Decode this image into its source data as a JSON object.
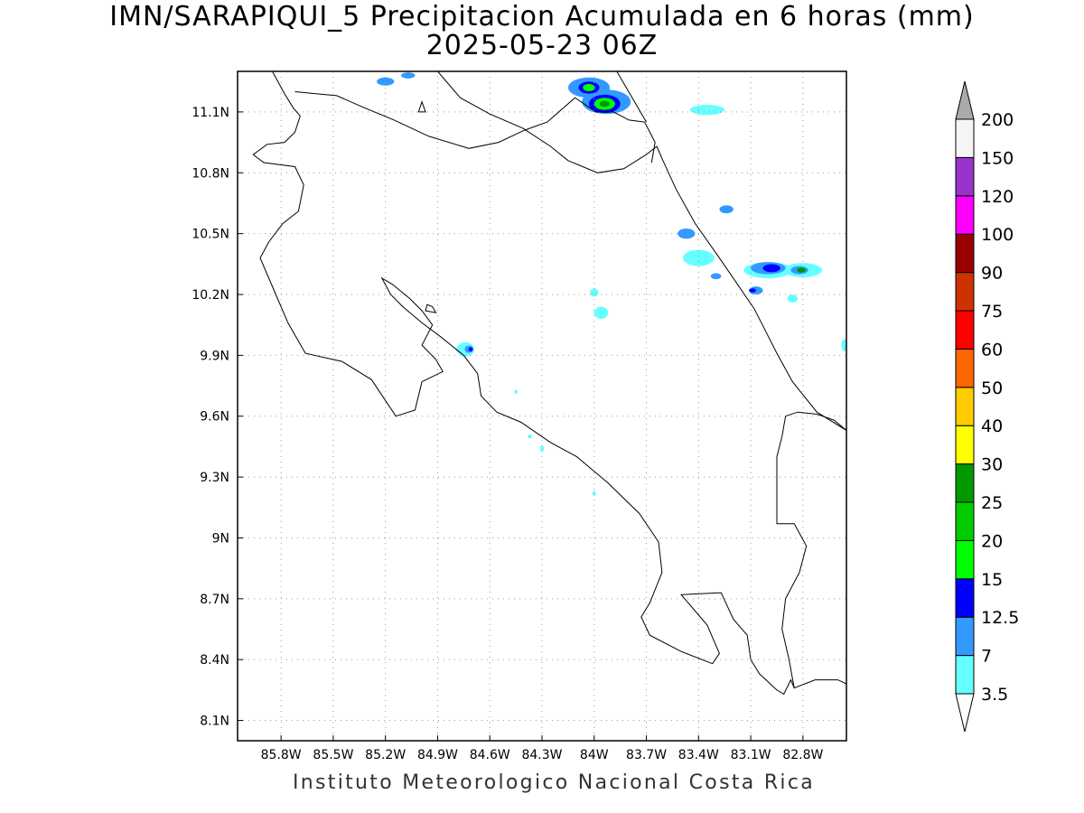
{
  "title": {
    "line1": "IMN/SARAPIQUI_5 Precipitacion Acumulada en 6 horas (mm)",
    "line2": "2025-05-23 06Z"
  },
  "footer": "Instituto Meteorologico Nacional Costa Rica",
  "map": {
    "extent": {
      "lon_min": -86.05,
      "lon_max": -82.55,
      "lat_min": 8.0,
      "lat_max": 11.3
    },
    "lat_ticks": [
      {
        "value": 11.1,
        "label": "11.1N"
      },
      {
        "value": 10.8,
        "label": "10.8N"
      },
      {
        "value": 10.5,
        "label": "10.5N"
      },
      {
        "value": 10.2,
        "label": "10.2N"
      },
      {
        "value": 9.9,
        "label": "9.9N"
      },
      {
        "value": 9.6,
        "label": "9.6N"
      },
      {
        "value": 9.3,
        "label": "9.3N"
      },
      {
        "value": 9.0,
        "label": "9N"
      },
      {
        "value": 8.7,
        "label": "8.7N"
      },
      {
        "value": 8.4,
        "label": "8.4N"
      },
      {
        "value": 8.1,
        "label": "8.1N"
      }
    ],
    "lon_ticks": [
      {
        "value": -85.8,
        "label": "85.8W"
      },
      {
        "value": -85.5,
        "label": "85.5W"
      },
      {
        "value": -85.2,
        "label": "85.2W"
      },
      {
        "value": -84.9,
        "label": "84.9W"
      },
      {
        "value": -84.6,
        "label": "84.6W"
      },
      {
        "value": -84.3,
        "label": "84.3W"
      },
      {
        "value": -84.0,
        "label": "84W"
      },
      {
        "value": -83.7,
        "label": "83.7W"
      },
      {
        "value": -83.4,
        "label": "83.4W"
      },
      {
        "value": -83.1,
        "label": "83.1W"
      },
      {
        "value": -82.8,
        "label": "82.8W"
      }
    ],
    "gridlines": true,
    "coastlines": [
      [
        [
          -85.85,
          11.3
        ],
        [
          -85.78,
          11.19
        ],
        [
          -85.73,
          11.12
        ],
        [
          -85.69,
          11.08
        ],
        [
          -85.72,
          11.0
        ],
        [
          -85.78,
          10.95
        ],
        [
          -85.88,
          10.94
        ],
        [
          -85.96,
          10.89
        ],
        [
          -85.9,
          10.85
        ],
        [
          -85.72,
          10.83
        ],
        [
          -85.67,
          10.74
        ],
        [
          -85.7,
          10.61
        ],
        [
          -85.79,
          10.55
        ],
        [
          -85.87,
          10.46
        ],
        [
          -85.92,
          10.38
        ],
        [
          -85.84,
          10.22
        ],
        [
          -85.76,
          10.06
        ],
        [
          -85.66,
          9.91
        ],
        [
          -85.45,
          9.87
        ],
        [
          -85.28,
          9.78
        ],
        [
          -85.14,
          9.6
        ],
        [
          -85.03,
          9.63
        ],
        [
          -84.99,
          9.77
        ],
        [
          -84.87,
          9.82
        ],
        [
          -84.91,
          9.88
        ],
        [
          -84.99,
          9.95
        ],
        [
          -84.93,
          10.05
        ],
        [
          -84.99,
          10.12
        ],
        [
          -85.06,
          10.18
        ],
        [
          -85.16,
          10.25
        ],
        [
          -85.22,
          10.28
        ],
        [
          -85.17,
          10.2
        ],
        [
          -85.1,
          10.14
        ],
        [
          -84.99,
          10.06
        ],
        [
          -84.88,
          9.99
        ],
        [
          -84.75,
          9.9
        ],
        [
          -84.67,
          9.81
        ],
        [
          -84.65,
          9.7
        ],
        [
          -84.56,
          9.62
        ],
        [
          -84.42,
          9.57
        ],
        [
          -84.25,
          9.47
        ],
        [
          -84.1,
          9.4
        ],
        [
          -83.92,
          9.27
        ],
        [
          -83.74,
          9.12
        ],
        [
          -83.63,
          8.98
        ],
        [
          -83.61,
          8.83
        ],
        [
          -83.68,
          8.68
        ],
        [
          -83.73,
          8.61
        ],
        [
          -83.68,
          8.52
        ],
        [
          -83.5,
          8.44
        ],
        [
          -83.32,
          8.38
        ],
        [
          -83.28,
          8.43
        ],
        [
          -83.35,
          8.57
        ],
        [
          -83.5,
          8.72
        ],
        [
          -83.27,
          8.73
        ],
        [
          -83.2,
          8.6
        ],
        [
          -83.12,
          8.52
        ],
        [
          -83.1,
          8.4
        ],
        [
          -83.05,
          8.33
        ],
        [
          -82.95,
          8.25
        ],
        [
          -82.91,
          8.23
        ],
        [
          -82.87,
          8.3
        ],
        [
          -82.85,
          8.26
        ],
        [
          -82.73,
          8.3
        ],
        [
          -82.6,
          8.3
        ],
        [
          -82.55,
          8.28
        ]
      ],
      [
        [
          -84.9,
          11.3
        ],
        [
          -84.84,
          11.24
        ],
        [
          -84.77,
          11.17
        ],
        [
          -84.6,
          11.09
        ],
        [
          -84.41,
          11.02
        ],
        [
          -84.25,
          10.93
        ],
        [
          -84.15,
          10.86
        ],
        [
          -83.98,
          10.8
        ],
        [
          -83.83,
          10.82
        ],
        [
          -83.7,
          10.89
        ],
        [
          -83.64,
          10.93
        ],
        [
          -83.61,
          10.87
        ],
        [
          -83.53,
          10.72
        ],
        [
          -83.42,
          10.55
        ],
        [
          -83.28,
          10.38
        ],
        [
          -83.08,
          10.13
        ],
        [
          -82.95,
          9.91
        ],
        [
          -82.86,
          9.77
        ],
        [
          -82.72,
          9.62
        ],
        [
          -82.55,
          9.53
        ]
      ],
      [
        [
          -83.71,
          11.05
        ],
        [
          -83.65,
          10.95
        ],
        [
          -83.67,
          10.85
        ]
      ]
    ],
    "borders": [
      [
        [
          -85.72,
          11.2
        ],
        [
          -85.6,
          11.19
        ],
        [
          -85.48,
          11.18
        ],
        [
          -85.32,
          11.12
        ],
        [
          -85.15,
          11.06
        ],
        [
          -84.95,
          10.98
        ],
        [
          -84.72,
          10.92
        ],
        [
          -84.55,
          10.95
        ],
        [
          -84.4,
          11.01
        ],
        [
          -84.27,
          11.05
        ],
        [
          -84.11,
          11.17
        ],
        [
          -83.99,
          11.1
        ],
        [
          -83.89,
          11.1
        ],
        [
          -83.8,
          11.06
        ],
        [
          -83.71,
          11.05
        ]
      ],
      [
        [
          -83.7,
          11.05
        ],
        [
          -83.87,
          11.3
        ]
      ],
      [
        [
          -82.55,
          9.53
        ],
        [
          -82.62,
          9.58
        ],
        [
          -82.72,
          9.61
        ],
        [
          -82.83,
          9.62
        ],
        [
          -82.9,
          9.6
        ],
        [
          -82.92,
          9.5
        ],
        [
          -82.95,
          9.4
        ],
        [
          -82.95,
          9.07
        ],
        [
          -82.85,
          9.07
        ],
        [
          -82.78,
          8.96
        ],
        [
          -82.82,
          8.83
        ],
        [
          -82.9,
          8.7
        ],
        [
          -82.92,
          8.55
        ],
        [
          -82.88,
          8.4
        ],
        [
          -82.85,
          8.26
        ]
      ]
    ],
    "lake": [
      [
        -84.96,
        10.15
      ],
      [
        -84.97,
        10.12
      ],
      [
        -84.91,
        10.11
      ],
      [
        -84.93,
        10.14
      ]
    ],
    "islet": [
      [
        -85.01,
        11.1
      ],
      [
        -84.99,
        11.15
      ],
      [
        -84.97,
        11.1
      ]
    ],
    "precip_cells": [
      {
        "lon": -84.03,
        "lat": 11.22,
        "rx": 0.12,
        "ry": 0.05,
        "class": "7"
      },
      {
        "lon": -83.93,
        "lat": 11.15,
        "rx": 0.14,
        "ry": 0.06,
        "class": "7"
      },
      {
        "lon": -84.03,
        "lat": 11.22,
        "rx": 0.06,
        "ry": 0.03,
        "class": "12.5"
      },
      {
        "lon": -84.03,
        "lat": 11.22,
        "rx": 0.035,
        "ry": 0.018,
        "class": "15"
      },
      {
        "lon": -83.94,
        "lat": 11.14,
        "rx": 0.09,
        "ry": 0.045,
        "class": "12.5"
      },
      {
        "lon": -83.94,
        "lat": 11.14,
        "rx": 0.06,
        "ry": 0.03,
        "class": "15"
      },
      {
        "lon": -83.94,
        "lat": 11.14,
        "rx": 0.03,
        "ry": 0.015,
        "class": "25"
      },
      {
        "lon": -85.2,
        "lat": 11.25,
        "rx": 0.05,
        "ry": 0.02,
        "class": "7"
      },
      {
        "lon": -85.07,
        "lat": 11.28,
        "rx": 0.04,
        "ry": 0.015,
        "class": "7"
      },
      {
        "lon": -83.35,
        "lat": 11.11,
        "rx": 0.1,
        "ry": 0.025,
        "class": "3.5"
      },
      {
        "lon": -83.24,
        "lat": 10.62,
        "rx": 0.04,
        "ry": 0.02,
        "class": "7"
      },
      {
        "lon": -83.47,
        "lat": 10.5,
        "rx": 0.05,
        "ry": 0.025,
        "class": "7"
      },
      {
        "lon": -83.4,
        "lat": 10.38,
        "rx": 0.09,
        "ry": 0.04,
        "class": "3.5"
      },
      {
        "lon": -83.3,
        "lat": 10.29,
        "rx": 0.03,
        "ry": 0.015,
        "class": "7"
      },
      {
        "lon": -83.0,
        "lat": 10.32,
        "rx": 0.14,
        "ry": 0.04,
        "class": "3.5"
      },
      {
        "lon": -82.8,
        "lat": 10.32,
        "rx": 0.11,
        "ry": 0.035,
        "class": "3.5"
      },
      {
        "lon": -83.0,
        "lat": 10.33,
        "rx": 0.1,
        "ry": 0.03,
        "class": "7"
      },
      {
        "lon": -82.98,
        "lat": 10.33,
        "rx": 0.05,
        "ry": 0.02,
        "class": "12.5"
      },
      {
        "lon": -82.82,
        "lat": 10.32,
        "rx": 0.05,
        "ry": 0.02,
        "class": "7"
      },
      {
        "lon": -82.81,
        "lat": 10.32,
        "rx": 0.025,
        "ry": 0.012,
        "class": "25"
      },
      {
        "lon": -83.07,
        "lat": 10.22,
        "rx": 0.04,
        "ry": 0.02,
        "class": "7"
      },
      {
        "lon": -83.09,
        "lat": 10.22,
        "rx": 0.02,
        "ry": 0.01,
        "class": "12.5"
      },
      {
        "lon": -82.86,
        "lat": 10.18,
        "rx": 0.03,
        "ry": 0.02,
        "class": "3.5"
      },
      {
        "lon": -84.0,
        "lat": 10.21,
        "rx": 0.025,
        "ry": 0.02,
        "class": "3.5"
      },
      {
        "lon": -83.96,
        "lat": 10.11,
        "rx": 0.04,
        "ry": 0.03,
        "class": "3.5"
      },
      {
        "lon": -84.74,
        "lat": 9.93,
        "rx": 0.05,
        "ry": 0.035,
        "class": "3.5"
      },
      {
        "lon": -84.72,
        "lat": 9.93,
        "rx": 0.025,
        "ry": 0.018,
        "class": "7"
      },
      {
        "lon": -84.71,
        "lat": 9.93,
        "rx": 0.012,
        "ry": 0.01,
        "class": "12.5"
      },
      {
        "lon": -82.56,
        "lat": 9.95,
        "rx": 0.02,
        "ry": 0.03,
        "class": "3.5"
      },
      {
        "lon": -84.45,
        "lat": 9.72,
        "rx": 0.01,
        "ry": 0.01,
        "class": "3.5"
      },
      {
        "lon": -84.37,
        "lat": 9.5,
        "rx": 0.012,
        "ry": 0.01,
        "class": "3.5"
      },
      {
        "lon": -84.3,
        "lat": 9.44,
        "rx": 0.012,
        "ry": 0.015,
        "class": "3.5"
      },
      {
        "lon": -84.0,
        "lat": 9.22,
        "rx": 0.01,
        "ry": 0.012,
        "class": "3.5"
      }
    ]
  },
  "colorbar": {
    "levels": [
      {
        "label": "3.5",
        "color": "#66ffff"
      },
      {
        "label": "7",
        "color": "#3399ff"
      },
      {
        "label": "12.5",
        "color": "#0000ff"
      },
      {
        "label": "15",
        "color": "#00ff00"
      },
      {
        "label": "20",
        "color": "#00cc00"
      },
      {
        "label": "25",
        "color": "#009900"
      },
      {
        "label": "30",
        "color": "#ffff00"
      },
      {
        "label": "40",
        "color": "#ffcc00"
      },
      {
        "label": "50",
        "color": "#ff6600"
      },
      {
        "label": "60",
        "color": "#ff0000"
      },
      {
        "label": "75",
        "color": "#cc3300"
      },
      {
        "label": "90",
        "color": "#990000"
      },
      {
        "label": "100",
        "color": "#ff00ff"
      },
      {
        "label": "120",
        "color": "#9933cc"
      },
      {
        "label": "150",
        "color": "#f5f5f5"
      },
      {
        "label": "200",
        "color": "#aaaaaa"
      }
    ],
    "below_color": "#ffffff",
    "above_color": "#aaaaaa"
  }
}
